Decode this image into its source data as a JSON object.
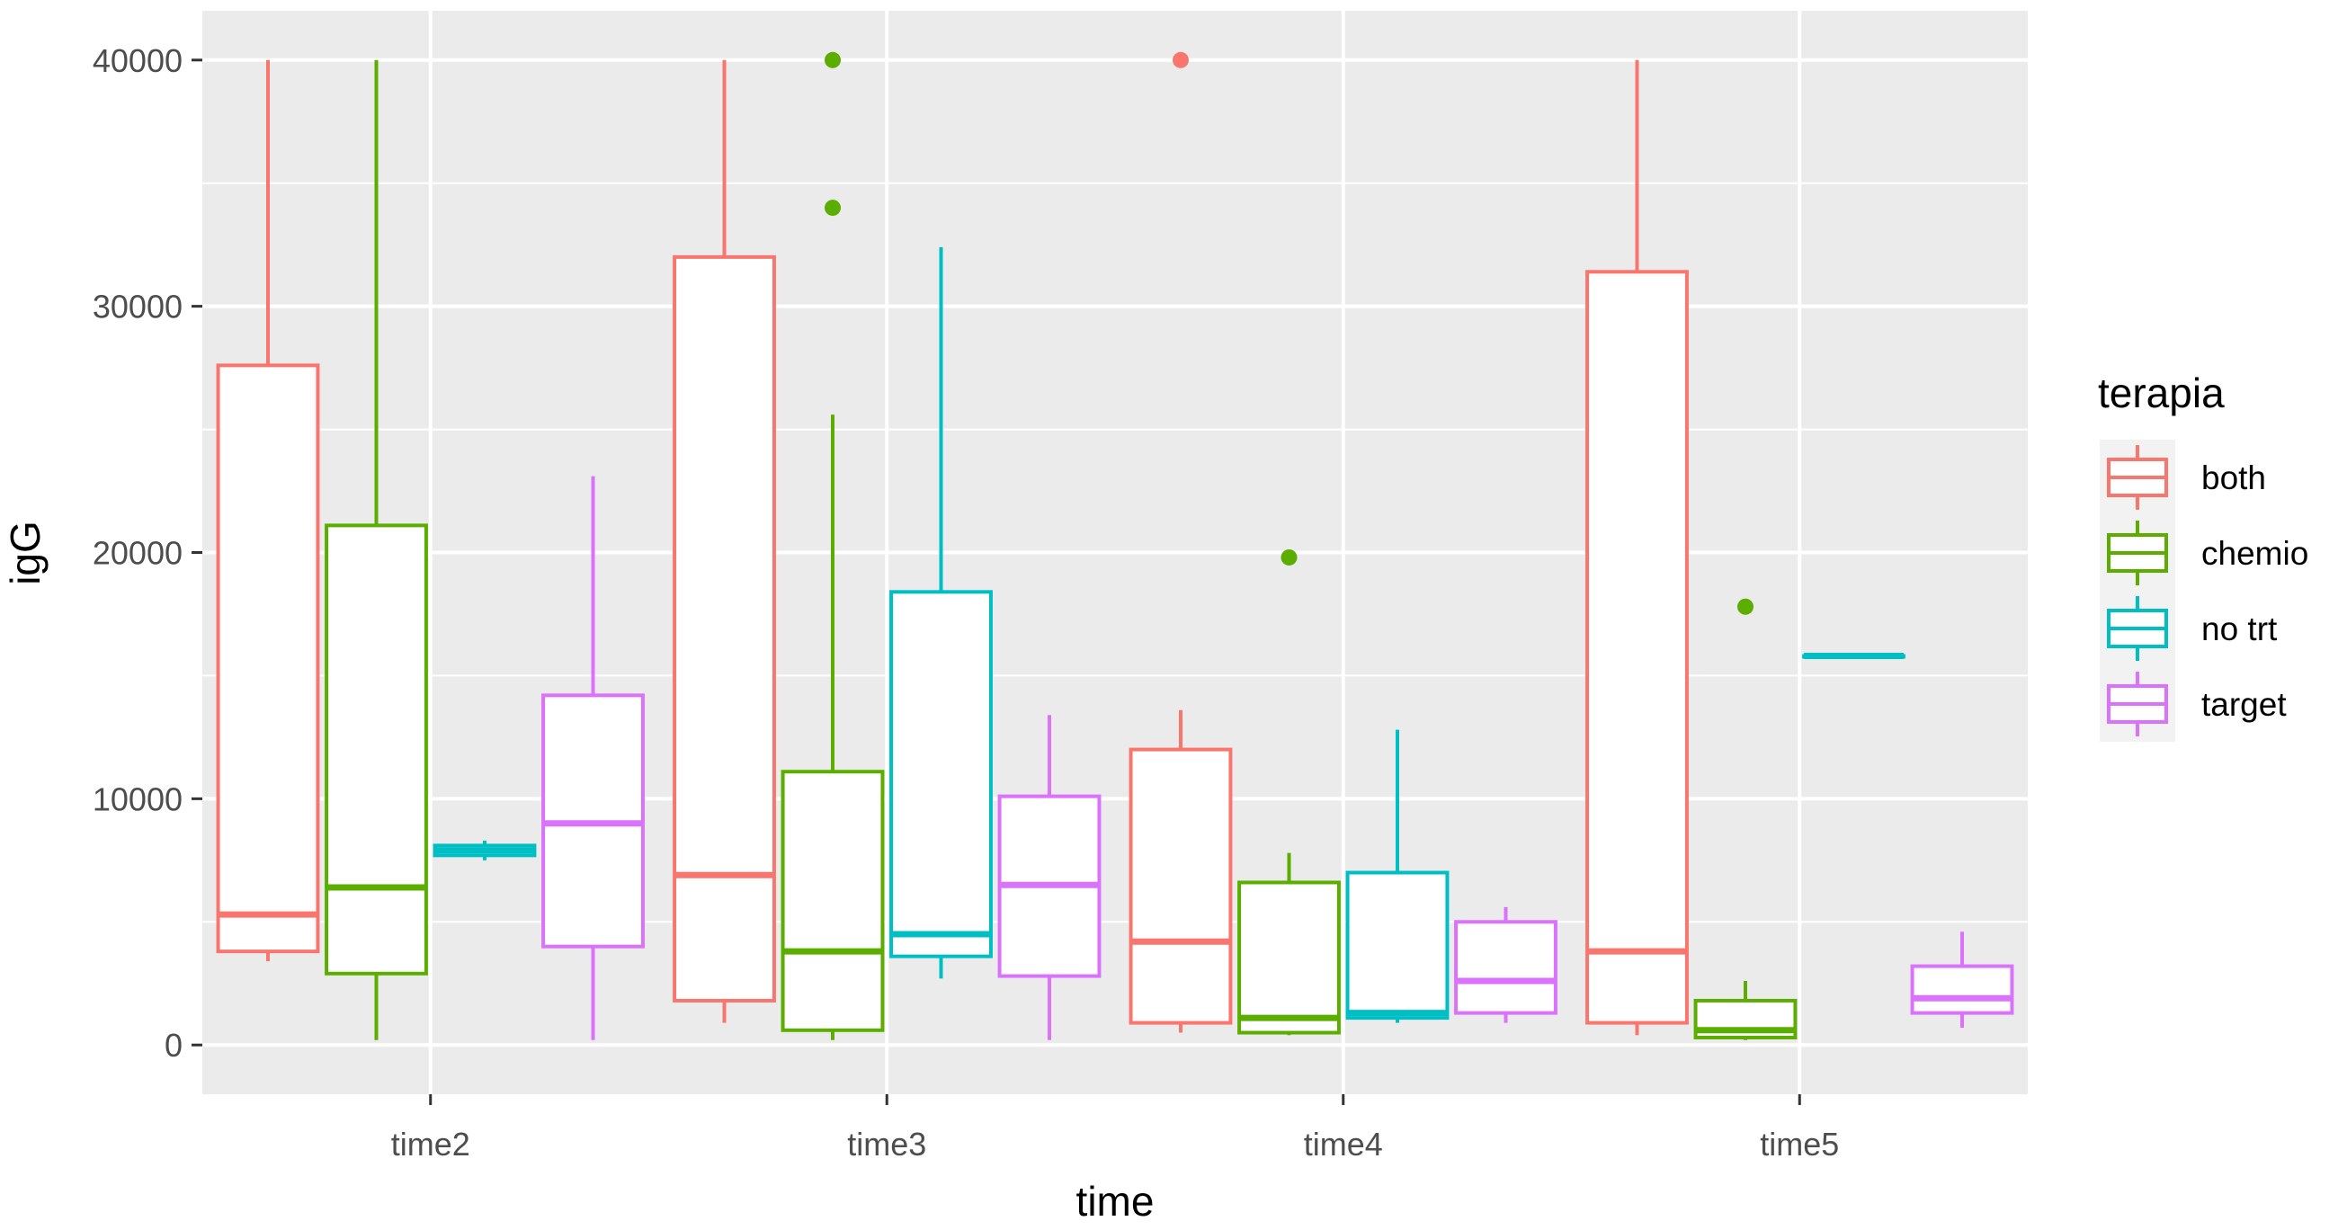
{
  "chart_data": {
    "type": "boxplot",
    "title": "",
    "xlabel": "time",
    "ylabel": "igG",
    "ylim": [
      -2000,
      42000
    ],
    "y_ticks": [
      0,
      10000,
      20000,
      30000,
      40000
    ],
    "y_tick_labels": [
      "0",
      "10000",
      "20000",
      "30000",
      "40000"
    ],
    "y_minor_ticks": [
      5000,
      15000,
      25000,
      35000
    ],
    "categories": [
      "time2",
      "time3",
      "time4",
      "time5"
    ],
    "legend": {
      "title": "terapia",
      "position": "right",
      "entries": [
        "both",
        "chemio",
        "no trt",
        "target"
      ]
    },
    "colors": {
      "both": "#F8766D",
      "chemio": "#5BAE00",
      "no trt": "#00BFC4",
      "target": "#DB72FB",
      "panel": "#EBEBEB",
      "grid": "#FFFFFF"
    },
    "series": [
      {
        "name": "both",
        "color": "#F8766D",
        "boxes": [
          {
            "category": "time2",
            "min": 3400,
            "q1": 3800,
            "median": 5300,
            "q3": 27600,
            "max": 40000,
            "outliers": []
          },
          {
            "category": "time3",
            "min": 900,
            "q1": 1800,
            "median": 6900,
            "q3": 32000,
            "max": 40000,
            "outliers": []
          },
          {
            "category": "time4",
            "min": 500,
            "q1": 900,
            "median": 4200,
            "q3": 12000,
            "max": 13600,
            "outliers": [
              40000
            ]
          },
          {
            "category": "time5",
            "min": 400,
            "q1": 900,
            "median": 3800,
            "q3": 31400,
            "max": 40000,
            "outliers": []
          }
        ]
      },
      {
        "name": "chemio",
        "color": "#5BAE00",
        "boxes": [
          {
            "category": "time2",
            "min": 200,
            "q1": 2900,
            "median": 6400,
            "q3": 21100,
            "max": 40000,
            "outliers": []
          },
          {
            "category": "time3",
            "min": 200,
            "q1": 600,
            "median": 3800,
            "q3": 11100,
            "max": 25600,
            "outliers": [
              34000,
              40000
            ]
          },
          {
            "category": "time4",
            "min": 400,
            "q1": 500,
            "median": 1100,
            "q3": 6600,
            "max": 7800,
            "outliers": [
              19800
            ]
          },
          {
            "category": "time5",
            "min": 200,
            "q1": 300,
            "median": 600,
            "q3": 1800,
            "max": 2600,
            "outliers": [
              17800
            ]
          }
        ]
      },
      {
        "name": "no trt",
        "color": "#00BFC4",
        "boxes": [
          {
            "category": "time2",
            "min": 7500,
            "q1": 7700,
            "median": 7900,
            "q3": 8100,
            "max": 8300,
            "outliers": []
          },
          {
            "category": "time3",
            "min": 2700,
            "q1": 3600,
            "median": 4500,
            "q3": 18400,
            "max": 32400,
            "outliers": []
          },
          {
            "category": "time4",
            "min": 900,
            "q1": 1100,
            "median": 1300,
            "q3": 7000,
            "max": 12800,
            "outliers": []
          },
          {
            "category": "time5",
            "min": 15800,
            "q1": 15800,
            "median": 15800,
            "q3": 15800,
            "max": 15800,
            "outliers": []
          }
        ]
      },
      {
        "name": "target",
        "color": "#DB72FB",
        "boxes": [
          {
            "category": "time2",
            "min": 200,
            "q1": 4000,
            "median": 9000,
            "q3": 14200,
            "max": 23100,
            "outliers": []
          },
          {
            "category": "time3",
            "min": 200,
            "q1": 2800,
            "median": 6500,
            "q3": 10100,
            "max": 13400,
            "outliers": []
          },
          {
            "category": "time4",
            "min": 900,
            "q1": 1300,
            "median": 2600,
            "q3": 5000,
            "max": 5600,
            "outliers": []
          },
          {
            "category": "time5",
            "min": 700,
            "q1": 1300,
            "median": 1900,
            "q3": 3200,
            "max": 4600,
            "outliers": []
          }
        ]
      }
    ]
  }
}
